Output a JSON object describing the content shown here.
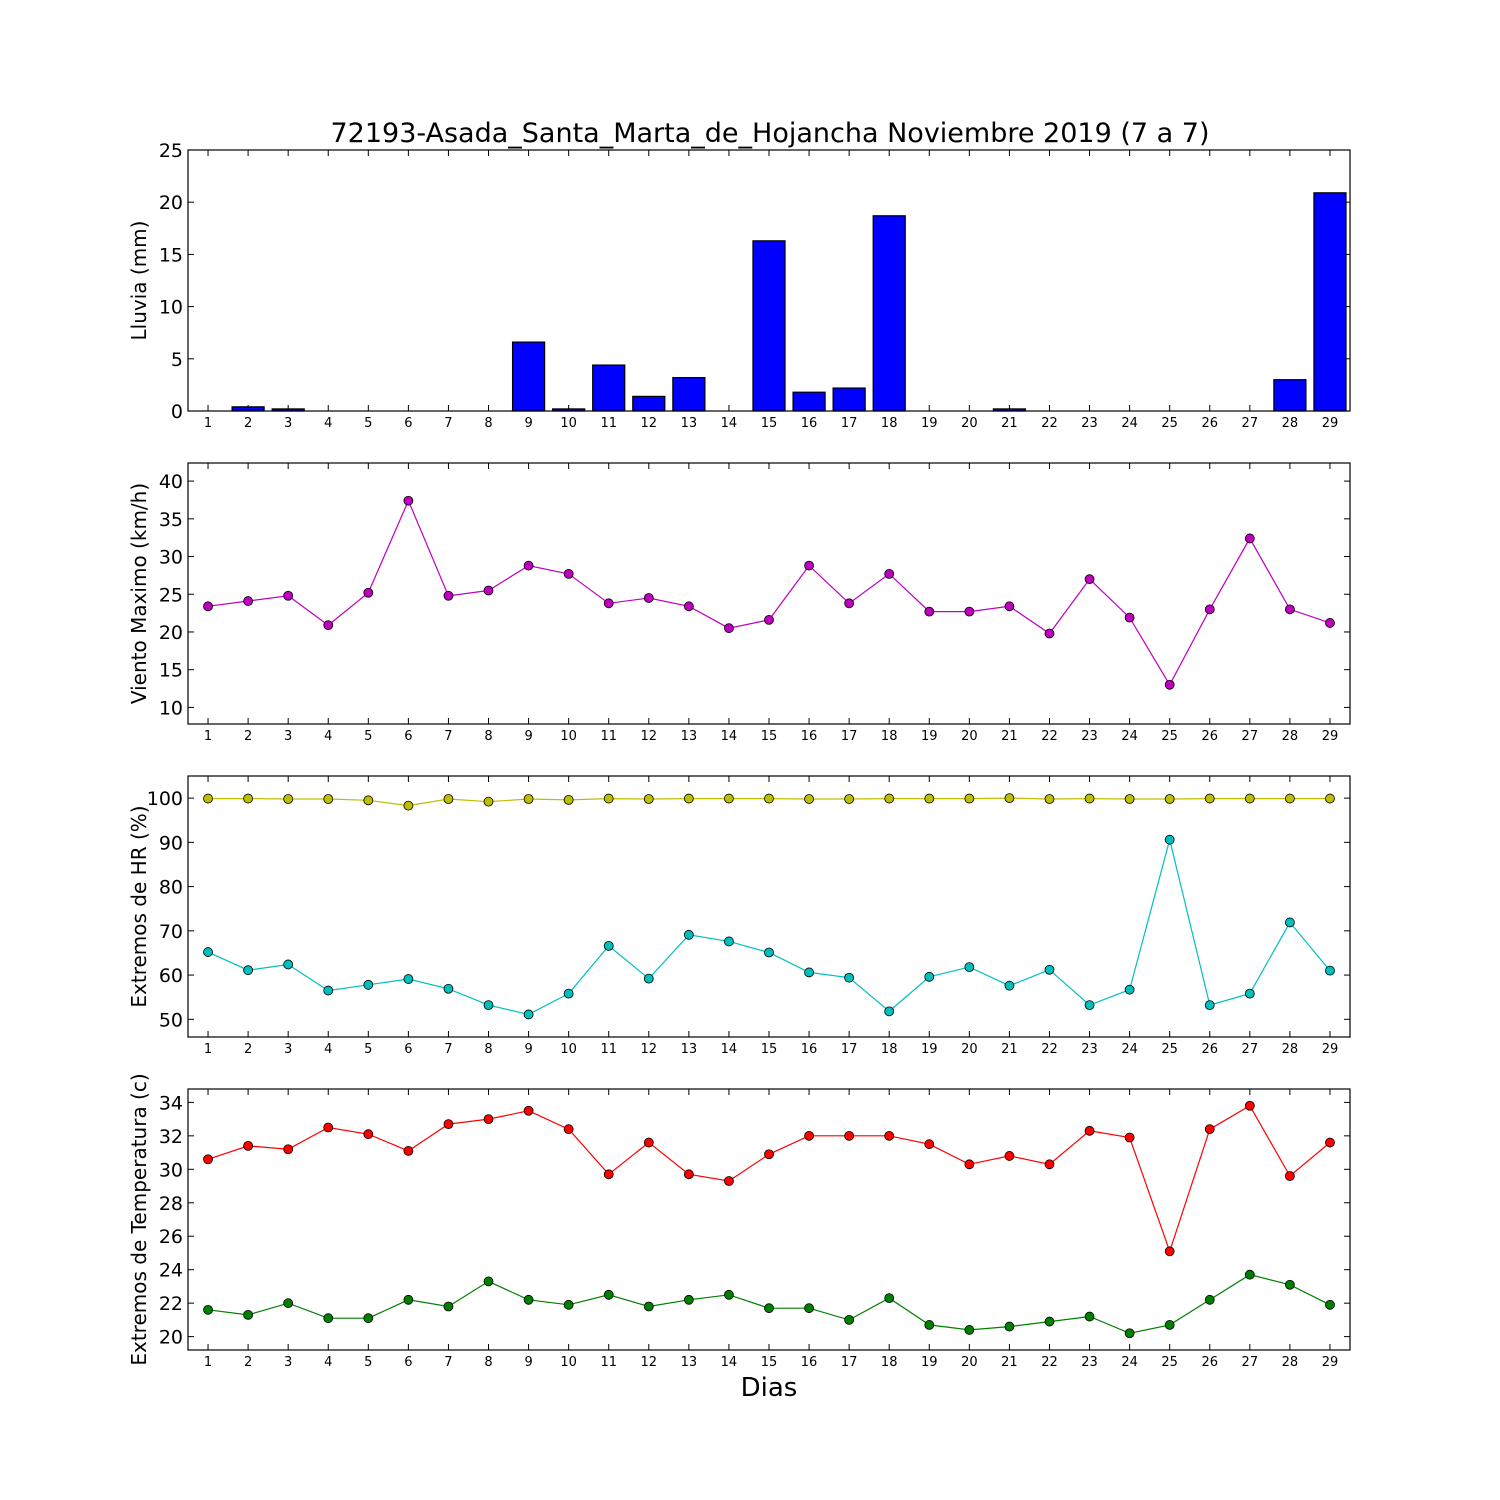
{
  "figure": {
    "title": "72193-Asada_Santa_Marta_de_Hojancha Noviembre 2019  (7 a 7)",
    "xlabel": "Dias"
  },
  "chart_data": [
    {
      "type": "bar",
      "ylabel": "Lluvia (mm)",
      "ylim": [
        0,
        25
      ],
      "yticks": [
        0,
        5,
        10,
        15,
        20,
        25
      ],
      "categories": [
        1,
        2,
        3,
        4,
        5,
        6,
        7,
        8,
        9,
        10,
        11,
        12,
        13,
        14,
        15,
        16,
        17,
        18,
        19,
        20,
        21,
        22,
        23,
        24,
        25,
        26,
        27,
        28,
        29
      ],
      "series": [
        {
          "color": "#0000ff",
          "values": [
            0,
            0.4,
            0.2,
            0,
            0,
            0,
            0,
            0,
            6.6,
            0.2,
            4.4,
            1.4,
            3.2,
            0,
            16.3,
            1.8,
            2.2,
            18.7,
            0,
            0,
            0.2,
            0,
            0,
            0,
            0,
            0,
            0,
            3.0,
            20.9
          ]
        }
      ]
    },
    {
      "type": "line",
      "ylabel": "Viento Maximo (km/h)",
      "ylim": [
        7.8,
        42.4
      ],
      "yticks": [
        10,
        15,
        20,
        25,
        30,
        35,
        40
      ],
      "categories": [
        1,
        2,
        3,
        4,
        5,
        6,
        7,
        8,
        9,
        10,
        11,
        12,
        13,
        14,
        15,
        16,
        17,
        18,
        19,
        20,
        21,
        22,
        23,
        24,
        25,
        26,
        27,
        28,
        29
      ],
      "series": [
        {
          "color": "#bf00bf",
          "values": [
            23.4,
            24.1,
            24.8,
            20.9,
            25.2,
            37.4,
            24.8,
            25.5,
            28.8,
            27.7,
            23.8,
            24.5,
            23.4,
            20.5,
            21.6,
            28.8,
            23.8,
            27.7,
            22.7,
            22.7,
            23.4,
            19.8,
            27.0,
            21.9,
            13.0,
            23.0,
            32.4,
            23.0,
            21.2
          ]
        }
      ]
    },
    {
      "type": "line",
      "ylabel": "Extremos de HR (%)",
      "ylim": [
        46,
        105
      ],
      "yticks": [
        50,
        60,
        70,
        80,
        90,
        100
      ],
      "categories": [
        1,
        2,
        3,
        4,
        5,
        6,
        7,
        8,
        9,
        10,
        11,
        12,
        13,
        14,
        15,
        16,
        17,
        18,
        19,
        20,
        21,
        22,
        23,
        24,
        25,
        26,
        27,
        28,
        29
      ],
      "series": [
        {
          "color": "#bfbf00",
          "values": [
            99.9,
            99.9,
            99.8,
            99.8,
            99.5,
            98.3,
            99.8,
            99.2,
            99.8,
            99.6,
            99.9,
            99.8,
            99.9,
            99.9,
            99.9,
            99.8,
            99.8,
            99.9,
            99.9,
            99.9,
            100.0,
            99.8,
            99.9,
            99.8,
            99.8,
            99.9,
            99.9,
            99.9,
            99.9
          ]
        },
        {
          "color": "#00bfbf",
          "values": [
            65.2,
            61.1,
            62.4,
            56.5,
            57.8,
            59.1,
            56.9,
            53.2,
            51.1,
            55.8,
            66.6,
            59.2,
            69.1,
            67.6,
            65.1,
            60.6,
            59.4,
            51.8,
            59.6,
            61.8,
            57.6,
            61.2,
            53.2,
            56.7,
            90.6,
            53.2,
            55.8,
            71.9,
            61.0
          ]
        }
      ]
    },
    {
      "type": "line",
      "ylabel": "Extremos de Temperatura (c)",
      "ylim": [
        19.2,
        34.8
      ],
      "yticks": [
        20,
        22,
        24,
        26,
        28,
        30,
        32,
        34
      ],
      "categories": [
        1,
        2,
        3,
        4,
        5,
        6,
        7,
        8,
        9,
        10,
        11,
        12,
        13,
        14,
        15,
        16,
        17,
        18,
        19,
        20,
        21,
        22,
        23,
        24,
        25,
        26,
        27,
        28,
        29
      ],
      "series": [
        {
          "color": "#ff0000",
          "values": [
            30.6,
            31.4,
            31.2,
            32.5,
            32.1,
            31.1,
            32.7,
            33.0,
            33.5,
            32.4,
            29.7,
            31.6,
            29.7,
            29.3,
            30.9,
            32.0,
            32.0,
            32.0,
            31.5,
            30.3,
            30.8,
            30.3,
            32.3,
            31.9,
            25.1,
            32.4,
            33.8,
            29.6,
            31.6
          ]
        },
        {
          "color": "#008000",
          "values": [
            21.6,
            21.3,
            22.0,
            21.1,
            21.1,
            22.2,
            21.8,
            23.3,
            22.2,
            21.9,
            22.5,
            21.8,
            22.2,
            22.5,
            21.7,
            21.7,
            21.0,
            22.3,
            20.7,
            20.4,
            20.6,
            20.9,
            21.2,
            20.2,
            20.7,
            22.2,
            23.7,
            23.1,
            21.9
          ]
        }
      ]
    }
  ]
}
